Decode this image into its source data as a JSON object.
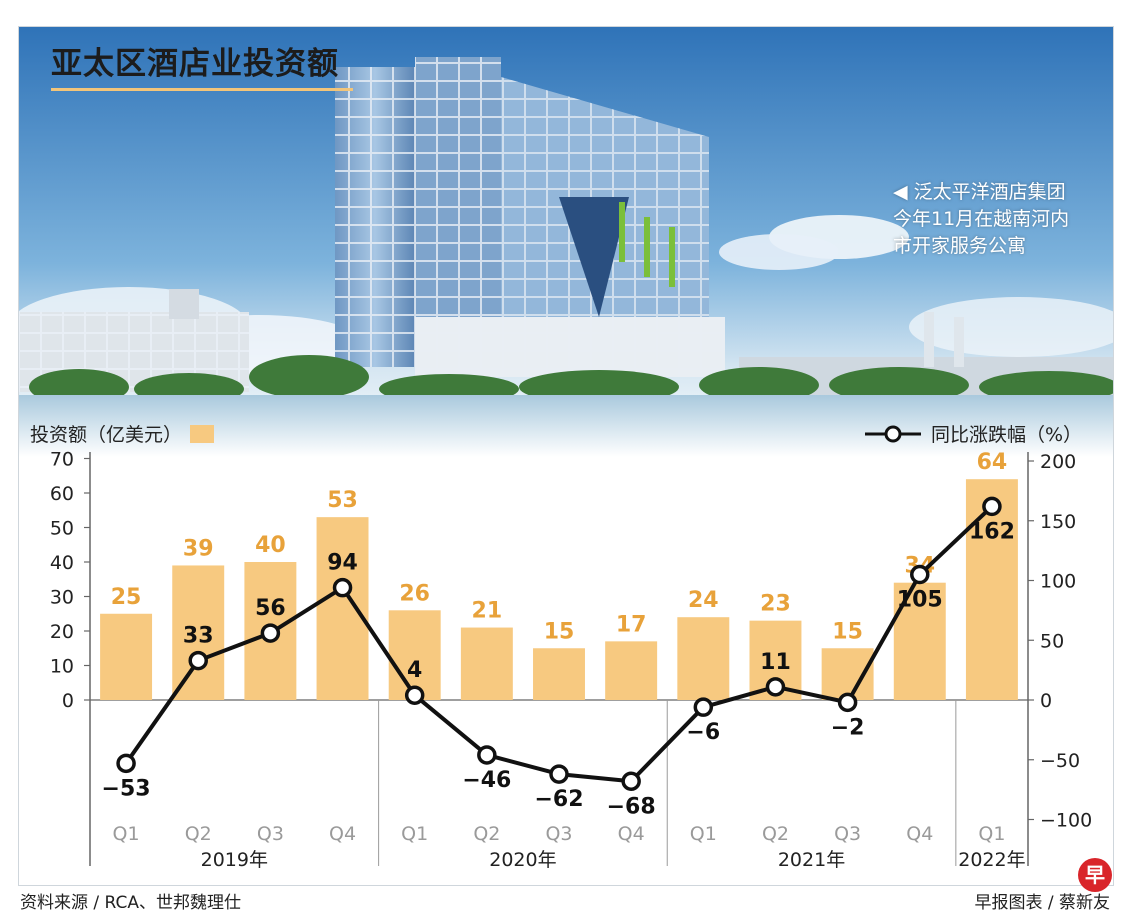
{
  "title": "亚太区酒店业投资额",
  "caption": [
    "◀ 泛太平洋酒店集团",
    "今年11月在越南河内",
    "市开家服务公寓"
  ],
  "legend": {
    "bar": "投资额（亿美元）",
    "line": "同比涨跌幅（%）"
  },
  "footer": {
    "source": "资料来源 / RCA、世邦魏理仕",
    "credit": "早报图表 / 蔡新友",
    "logo": "早"
  },
  "colors": {
    "bar": "#f7c980",
    "bar_label": "#e8a23a",
    "line": "#111111",
    "axis": "#666666"
  },
  "chart_data": {
    "type": "bar",
    "title": "亚太区酒店业投资额",
    "categories": [
      "Q1",
      "Q2",
      "Q3",
      "Q4",
      "Q1",
      "Q2",
      "Q3",
      "Q4",
      "Q1",
      "Q2",
      "Q3",
      "Q4",
      "Q1"
    ],
    "groups": [
      {
        "label": "2019年",
        "start": 0,
        "end": 3
      },
      {
        "label": "2020年",
        "start": 4,
        "end": 7
      },
      {
        "label": "2021年",
        "start": 8,
        "end": 11
      },
      {
        "label": "2022年",
        "start": 12,
        "end": 12
      }
    ],
    "series": [
      {
        "name": "投资额（亿美元）",
        "type": "bar",
        "axis": "left",
        "values": [
          25,
          39,
          40,
          53,
          26,
          21,
          15,
          17,
          24,
          23,
          15,
          34,
          64
        ]
      },
      {
        "name": "同比涨跌幅（%）",
        "type": "line",
        "axis": "right",
        "values": [
          -53,
          33,
          56,
          94,
          4,
          -46,
          -62,
          -68,
          -6,
          11,
          -2,
          105,
          162
        ],
        "labels": [
          "−53",
          "33",
          "56",
          "94",
          "4",
          "−46",
          "−62",
          "−68",
          "−6",
          "11",
          "−2",
          "105",
          "162"
        ]
      }
    ],
    "y_left": {
      "ticks": [
        0,
        10,
        20,
        30,
        40,
        50,
        60,
        70
      ],
      "ylim": [
        -35,
        70
      ]
    },
    "y_right": {
      "ticks": [
        -100,
        -50,
        0,
        50,
        100,
        150,
        200
      ],
      "labels": [
        "−100",
        "−50",
        "0",
        "50",
        "100",
        "150",
        "200"
      ],
      "ylim": [
        -100,
        200
      ]
    }
  }
}
